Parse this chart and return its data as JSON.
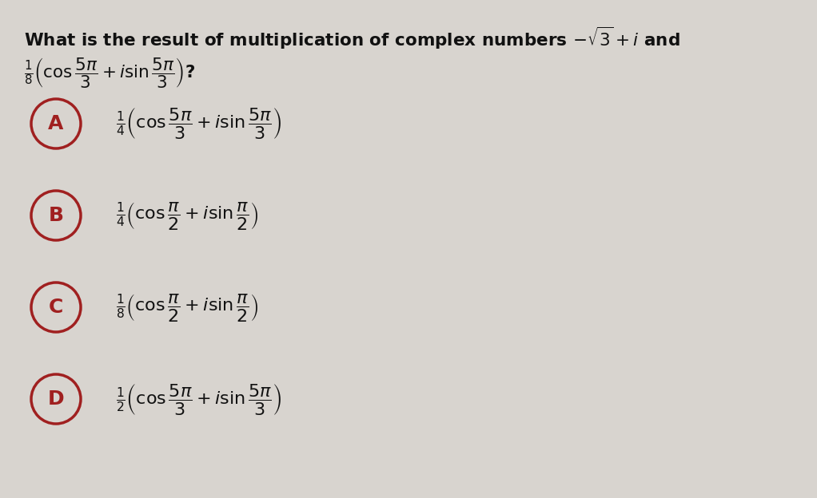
{
  "background_color": "#d8d4cf",
  "title_line1": "What is the result of multiplication of complex numbers $-\\sqrt{3}+i$ and",
  "title_line2": "$\\frac{1}{8}\\left(\\cos\\dfrac{5\\pi}{3}+i\\sin\\dfrac{5\\pi}{3}\\right)$?",
  "options": [
    {
      "label": "A",
      "text": "$\\frac{1}{4}\\left(\\cos\\dfrac{5\\pi}{3}+i\\sin\\dfrac{5\\pi}{3}\\right)$"
    },
    {
      "label": "B",
      "text": "$\\frac{1}{4}\\left(\\cos\\dfrac{\\pi}{2}+i\\sin\\dfrac{\\pi}{2}\\right)$"
    },
    {
      "label": "C",
      "text": "$\\frac{1}{8}\\left(\\cos\\dfrac{\\pi}{2}+i\\sin\\dfrac{\\pi}{2}\\right)$"
    },
    {
      "label": "D",
      "text": "$\\frac{1}{2}\\left(\\cos\\dfrac{5\\pi}{3}+i\\sin\\dfrac{5\\pi}{3}\\right)$"
    }
  ],
  "circle_color": "#a02020",
  "text_color": "#111111",
  "label_color": "#a02020",
  "title_fontsize": 15.5,
  "option_fontsize": 16,
  "label_fontsize": 18
}
